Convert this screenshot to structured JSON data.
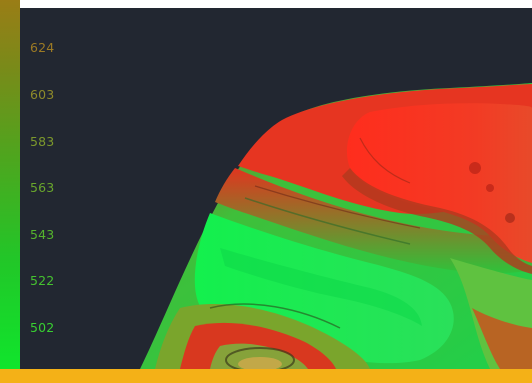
{
  "colorbar": {
    "ticks": [
      {
        "label": "624",
        "color": "#9c7a24"
      },
      {
        "label": "603",
        "color": "#8e8a2a"
      },
      {
        "label": "583",
        "color": "#7c982c"
      },
      {
        "label": "563",
        "color": "#69a62c"
      },
      {
        "label": "543",
        "color": "#55b42d"
      },
      {
        "label": "522",
        "color": "#45c22f"
      },
      {
        "label": "502",
        "color": "#38cf31"
      }
    ],
    "gradient_top": "#9a7d16",
    "gradient_bottom": "#10e52c"
  },
  "viewport": {
    "background": "#222731",
    "high_color": "#ff2a1a",
    "low_color": "#1fe84a"
  },
  "footer_bar_color": "#f4b117"
}
